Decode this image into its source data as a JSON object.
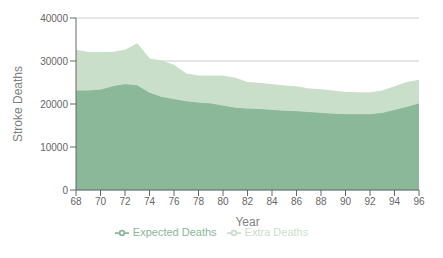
{
  "chart_data": {
    "type": "area",
    "xlabel": "Year",
    "ylabel": "Stroke Deaths",
    "x": [
      68,
      69,
      70,
      71,
      72,
      73,
      74,
      75,
      76,
      77,
      78,
      79,
      80,
      81,
      82,
      83,
      84,
      85,
      86,
      87,
      88,
      89,
      90,
      91,
      92,
      93,
      94,
      95,
      96
    ],
    "series": [
      {
        "name": "Expected Deaths",
        "color": "#8ab898",
        "values": [
          23000,
          23000,
          23200,
          24000,
          24500,
          24200,
          22500,
          21500,
          21000,
          20500,
          20200,
          20000,
          19500,
          19000,
          18800,
          18700,
          18500,
          18300,
          18200,
          18000,
          17800,
          17600,
          17500,
          17500,
          17500,
          17800,
          18500,
          19200,
          20000
        ]
      },
      {
        "name": "Extra Deaths",
        "color": "#c9dfc9",
        "values": [
          32500,
          32000,
          32000,
          32000,
          32500,
          34000,
          30500,
          30000,
          29000,
          27000,
          26500,
          26500,
          26500,
          26000,
          25000,
          24800,
          24500,
          24200,
          24000,
          23500,
          23300,
          23000,
          22700,
          22600,
          22600,
          23000,
          24000,
          25000,
          25500
        ]
      }
    ],
    "xlim": [
      68,
      96
    ],
    "xticks": [
      68,
      70,
      72,
      74,
      76,
      78,
      80,
      82,
      84,
      86,
      88,
      90,
      92,
      94,
      96
    ],
    "ylim": [
      0,
      40000
    ],
    "yticks": [
      0,
      10000,
      20000,
      30000,
      40000
    ],
    "grid": true,
    "legend": "bottom",
    "stacked": false
  }
}
